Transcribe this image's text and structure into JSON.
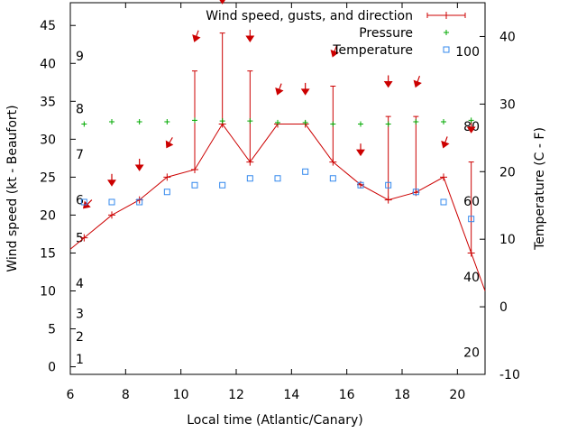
{
  "chart_data": {
    "type": "line",
    "title": "",
    "xlabel": "Local time (Atlantic/Canary)",
    "ylabel": "Wind speed (kt - Beaufort)",
    "y2label": "Temperature (C - F)",
    "xlim": [
      6,
      21
    ],
    "ylim": [
      -1,
      48
    ],
    "y2lim": [
      -10,
      45
    ],
    "x_ticks": [
      6,
      8,
      10,
      12,
      14,
      16,
      18,
      20
    ],
    "y_ticks": [
      0,
      5,
      10,
      15,
      20,
      25,
      30,
      35,
      40,
      45
    ],
    "y2_ticks": [
      -10,
      0,
      10,
      20,
      30,
      40
    ],
    "beaufort_labels": [
      {
        "label": "1",
        "y": 1
      },
      {
        "label": "2",
        "y": 4
      },
      {
        "label": "3",
        "y": 7
      },
      {
        "label": "4",
        "y": 11
      },
      {
        "label": "5",
        "y": 17
      },
      {
        "label": "6",
        "y": 22
      },
      {
        "label": "7",
        "y": 28
      },
      {
        "label": "8",
        "y": 34
      },
      {
        "label": "9",
        "y": 41
      }
    ],
    "fahrenheit_labels": [
      {
        "label": "20",
        "y2": -6.7
      },
      {
        "label": "40",
        "y2": 4.4
      },
      {
        "label": "60",
        "y2": 15.6
      },
      {
        "label": "80",
        "y2": 26.7
      },
      {
        "label": "100",
        "y2": 37.8
      }
    ],
    "legend": [
      {
        "name": "Wind speed, gusts, and direction",
        "color": "#cc0000",
        "marker": "plus-line"
      },
      {
        "name": "Pressure",
        "color": "#00aa00",
        "marker": "plus"
      },
      {
        "name": "Temperature",
        "color": "#3388ee",
        "marker": "square"
      }
    ],
    "series": [
      {
        "name": "Wind speed, gusts, and direction",
        "color": "#cc0000",
        "x": [
          6.5,
          7.5,
          8.5,
          9.5,
          10.5,
          11.5,
          12.5,
          13.5,
          14.5,
          15.5,
          16.5,
          17.5,
          18.5,
          19.5,
          20.5
        ],
        "values": [
          17,
          20,
          22,
          25,
          26,
          32,
          27,
          32,
          32,
          27,
          24,
          22,
          23,
          25,
          15
        ],
        "gusts": [
          17,
          20,
          22,
          25,
          39,
          44,
          39,
          32,
          32,
          37,
          24,
          33,
          33,
          25,
          27
        ]
      },
      {
        "name": "Pressure",
        "color": "#00aa00",
        "x": [
          6.5,
          7.5,
          8.5,
          9.5,
          10.5,
          11.5,
          12.5,
          13.5,
          14.5,
          15.5,
          16.5,
          17.5,
          18.5,
          19.5,
          20.5
        ],
        "values": [
          32,
          32.3,
          32.3,
          32.3,
          32.5,
          32.4,
          32.4,
          32.2,
          32.2,
          32.0,
          32.0,
          32.0,
          32.3,
          32.3,
          32.5
        ]
      },
      {
        "name": "Temperature",
        "color": "#3388ee",
        "axis": "y2",
        "x": [
          6.5,
          7.5,
          8.5,
          9.5,
          10.5,
          11.5,
          12.5,
          13.5,
          14.5,
          15.5,
          16.5,
          17.5,
          18.5,
          19.5,
          20.5
        ],
        "values": [
          15.5,
          15.5,
          15.5,
          17,
          18,
          18,
          19,
          19,
          20,
          19,
          18,
          18,
          17,
          15.5,
          13
        ]
      }
    ],
    "direction_arrows": {
      "color": "#cc0000",
      "x": [
        6.5,
        7.5,
        8.5,
        9.5,
        10.5,
        11.5,
        12.5,
        13.5,
        14.5,
        15.5,
        16.5,
        17.5,
        18.5,
        19.5,
        20.5
      ],
      "y": [
        21,
        24,
        26,
        29,
        43,
        48,
        43,
        36,
        36,
        41,
        28,
        37,
        37,
        29,
        31
      ],
      "angle": [
        45,
        0,
        0,
        30,
        20,
        0,
        0,
        20,
        0,
        20,
        0,
        0,
        20,
        20,
        0
      ]
    },
    "grid": false
  }
}
